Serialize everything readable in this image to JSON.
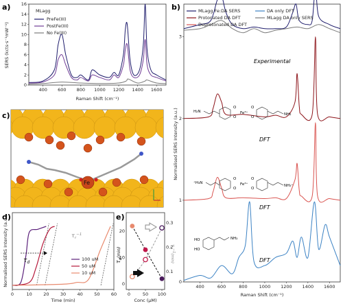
{
  "colors": {
    "navy": "#1d1b6b",
    "purple": "#6f3b95",
    "grey": "#7a7a7a",
    "dark_red": "#8c1218",
    "red": "#e04040",
    "salmon": "#e88a6e",
    "light_red": "#d9534f",
    "blue": "#3b82c4",
    "gold": "#f2b51b",
    "iron_orange": "#d4541c"
  },
  "panels": {
    "a": {
      "label": "a)",
      "legend_title": "MLagg",
      "legend": [
        "PreFe(III)",
        "PostFe(III)",
        "No Fe(III)"
      ],
      "ylabel": "SERS (kcts·s⁻¹mW⁻¹)",
      "xlabel": "Raman Shift (cm⁻¹)",
      "xticks": [
        "400",
        "600",
        "800",
        "1000",
        "1200",
        "1400",
        "1600"
      ],
      "yticks": [
        "0",
        "2",
        "4",
        "6",
        "8",
        "10",
        "12",
        "14",
        "16"
      ]
    },
    "b": {
      "label": "b)",
      "legend": [
        "MLagg Fe:DA SERS",
        "Protonated DA DFT",
        "Deprotonated DA DFT",
        "DA only DFT",
        "MLagg DA only SERS"
      ],
      "ylabel": "Normalised SERS Intensity (a.u.)",
      "xlabel": "Raman Shift (cm⁻¹)",
      "xticks": [
        "400",
        "600",
        "800",
        "1000",
        "1200",
        "1400",
        "1600"
      ],
      "yticks": [
        "0",
        "1",
        "2",
        "3"
      ],
      "annotations": [
        "Experimental",
        "DFT",
        "DFT",
        "DFT"
      ],
      "chem": {
        "mol1_left": "H₂N",
        "mol1_right": "NH₂",
        "mol1_metal": "Fe³⁺",
        "mol2_left": "⁺H₃N",
        "mol2_right": "NH₃⁺",
        "mol2_metal": "Fe³⁺",
        "mol3_left": "HO",
        "mol3_left2": "HO",
        "mol3_right": "NH₂",
        "oxygen": "O"
      }
    },
    "c": {
      "label": "c)",
      "atom_label": "Fe"
    },
    "d": {
      "label": "d)",
      "ylabel": "Normalised SERS Intensity (a.u.)",
      "xlabel": "Time (min)",
      "xticks": [
        "0",
        "10",
        "20",
        "30",
        "40",
        "50",
        "60"
      ],
      "legend": [
        "100 uM",
        "50 uM",
        "10 uM"
      ],
      "tau_d": "τ",
      "tau_d_sub": "d",
      "tau_r": "τ",
      "tau_r_sub": "r",
      "tau_r_sup": "−1"
    },
    "e": {
      "label": "e)",
      "ylabel_left": "τ",
      "ylabel_left_sub": "d",
      "ylabel_left_unit": "(min)",
      "ylabel_right": "τ",
      "ylabel_right_sub": "r",
      "ylabel_right_sup": "−1",
      "ylabel_right_unit": "(min)",
      "xlabel": "Conc (μM)",
      "xticks": [
        "0",
        "50",
        "100"
      ],
      "yticks_left": [
        "0",
        "10",
        "20"
      ],
      "yticks_right": [
        "0.1",
        "0.2",
        "0.3"
      ]
    }
  },
  "chart_data": [
    {
      "panel": "a",
      "type": "line",
      "xlabel": "Raman Shift (cm⁻¹)",
      "ylabel": "SERS (kcts·s⁻¹mW⁻¹)",
      "xlim": [
        250,
        1700
      ],
      "ylim": [
        0,
        16
      ],
      "series": [
        {
          "name": "PreFe(III)",
          "x": [
            250,
            400,
            520,
            560,
            600,
            640,
            700,
            760,
            800,
            880,
            920,
            1000,
            1100,
            1150,
            1200,
            1250,
            1270,
            1290,
            1320,
            1360,
            1420,
            1460,
            1480,
            1500,
            1540,
            1600,
            1700
          ],
          "y": [
            0.5,
            0.8,
            3,
            8,
            10,
            6,
            2,
            1.5,
            2,
            1,
            3,
            2,
            1.5,
            2.5,
            2,
            6,
            11,
            12,
            5,
            2,
            3,
            8,
            16,
            7,
            3,
            2,
            1
          ]
        },
        {
          "name": "PostFe(III)",
          "x": [
            250,
            400,
            520,
            560,
            600,
            640,
            700,
            760,
            800,
            880,
            920,
            1000,
            1100,
            1150,
            1200,
            1250,
            1270,
            1290,
            1320,
            1360,
            1420,
            1460,
            1480,
            1500,
            1540,
            1600,
            1700
          ],
          "y": [
            0.4,
            0.6,
            2,
            5,
            6,
            4,
            1.5,
            1,
            1.5,
            0.8,
            2,
            1.5,
            1,
            2,
            1.5,
            4,
            7,
            8,
            3,
            1.5,
            2,
            5,
            9,
            4,
            2,
            1.5,
            0.8
          ]
        },
        {
          "name": "No Fe(III)",
          "x": [
            250,
            400,
            600,
            800,
            1000,
            1200,
            1280,
            1300,
            1400,
            1480,
            1500,
            1600,
            1700
          ],
          "y": [
            0.2,
            0.3,
            0.6,
            0.4,
            0.3,
            0.4,
            0.8,
            1.2,
            0.4,
            0.8,
            1,
            0.4,
            0.3
          ]
        }
      ]
    },
    {
      "panel": "b",
      "type": "line",
      "xlabel": "Raman Shift (cm⁻¹)",
      "ylabel": "Normalised SERS Intensity (a.u.)",
      "xlim": [
        250,
        1700
      ],
      "ylim": [
        0,
        3.4
      ],
      "series": [
        {
          "name": "MLagg Fe:DA SERS",
          "x": [
            250,
            400,
            500,
            560,
            600,
            640,
            700,
            800,
            900,
            1000,
            1100,
            1200,
            1260,
            1290,
            1320,
            1400,
            1440,
            1470,
            1500,
            1600,
            1700
          ],
          "y": [
            3.1,
            3.15,
            3.2,
            3.45,
            3.5,
            3.3,
            3.15,
            3.1,
            3.12,
            3.1,
            3.1,
            3.12,
            3.3,
            3.4,
            3.2,
            3.15,
            3.2,
            3.6,
            3.25,
            3.15,
            3.1
          ]
        },
        {
          "name": "MLagg DA only SERS",
          "x": [
            250,
            400,
            500,
            600,
            700,
            800,
            900,
            1000,
            1100,
            1200,
            1300,
            1400,
            1500,
            1600,
            1700
          ],
          "y": [
            3.08,
            3.1,
            3.15,
            3.2,
            3.1,
            3.05,
            3.1,
            3.05,
            3.08,
            3.1,
            3.12,
            3.1,
            3.15,
            3.1,
            3.05
          ]
        },
        {
          "name": "Deprotonated DA DFT",
          "x": [
            250,
            480,
            520,
            560,
            600,
            640,
            800,
            1000,
            1100,
            1200,
            1280,
            1300,
            1320,
            1340,
            1440,
            1470,
            1490,
            1600,
            1700
          ],
          "y": [
            2.0,
            2.02,
            2.12,
            2.3,
            2.2,
            2.05,
            2.05,
            2.02,
            2.04,
            2.02,
            2.2,
            2.55,
            2.15,
            2.05,
            2.05,
            3.0,
            2.05,
            2.02,
            2.0
          ]
        },
        {
          "name": "Protonated DA DFT",
          "x": [
            250,
            480,
            520,
            560,
            600,
            640,
            800,
            1000,
            1100,
            1200,
            1280,
            1300,
            1320,
            1340,
            1440,
            1470,
            1490,
            1600,
            1700
          ],
          "y": [
            1.0,
            1.02,
            1.1,
            1.28,
            1.15,
            1.03,
            1.03,
            1.02,
            1.03,
            1.02,
            1.25,
            1.45,
            1.12,
            1.05,
            1.05,
            1.95,
            1.05,
            1.02,
            1.0
          ]
        },
        {
          "name": "DA only DFT",
          "x": [
            250,
            400,
            500,
            600,
            700,
            760,
            820,
            860,
            900,
            1000,
            1100,
            1200,
            1260,
            1300,
            1340,
            1400,
            1460,
            1500,
            1560,
            1600,
            1700
          ],
          "y": [
            0.02,
            0.08,
            0.05,
            0.2,
            0.1,
            0.3,
            0.45,
            0.98,
            0.25,
            0.2,
            0.3,
            0.35,
            0.5,
            0.3,
            0.55,
            0.3,
            0.98,
            0.4,
            0.7,
            0.55,
            0.2
          ]
        }
      ]
    },
    {
      "panel": "d",
      "type": "line",
      "xlabel": "Time (min)",
      "ylabel": "Normalised SERS Intensity (a.u.)",
      "xlim": [
        0,
        60
      ],
      "series": [
        {
          "name": "100 uM",
          "x": [
            0,
            5,
            8,
            10,
            15,
            20
          ],
          "y": [
            0,
            0.05,
            0.5,
            0.9,
            0.95,
            1.0
          ]
        },
        {
          "name": "50 uM",
          "x": [
            0,
            10,
            14,
            18,
            22,
            25
          ],
          "y": [
            0,
            0.05,
            0.3,
            0.7,
            0.95,
            1.0
          ]
        },
        {
          "name": "10 uM",
          "x": [
            0,
            30,
            38,
            45,
            52,
            58
          ],
          "y": [
            0,
            0.02,
            0.05,
            0.1,
            0.6,
            1.0
          ]
        }
      ]
    },
    {
      "panel": "e",
      "type": "scatter",
      "xlabel": "Conc (μM)",
      "xlim": [
        0,
        100
      ],
      "series": [
        {
          "name": "τd",
          "x": [
            10,
            50,
            100
          ],
          "y": [
            22,
            13,
            2
          ]
        },
        {
          "name": "τr−1",
          "x": [
            10,
            50,
            100
          ],
          "y": [
            0.08,
            0.15,
            0.28
          ]
        }
      ]
    }
  ]
}
